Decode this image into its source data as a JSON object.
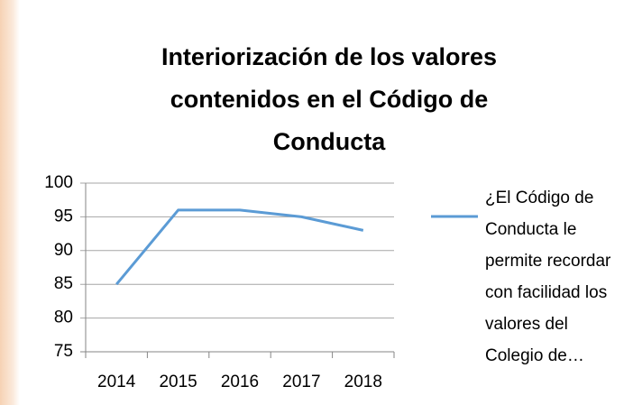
{
  "chart_data": {
    "type": "line",
    "title": "Interiorización de los valores contenidos en el Código de Conducta",
    "categories": [
      "2014",
      "2015",
      "2016",
      "2017",
      "2018"
    ],
    "series": [
      {
        "name": "¿El Código de Conducta le permite recordar con facilidad los valores del Colegio de…",
        "color": "#5b9bd5",
        "values": [
          85,
          96,
          96,
          95,
          93
        ]
      }
    ],
    "ylim": [
      75,
      100
    ],
    "yticks": [
      75,
      80,
      85,
      90,
      95,
      100
    ],
    "grid": true,
    "legend": "right"
  }
}
